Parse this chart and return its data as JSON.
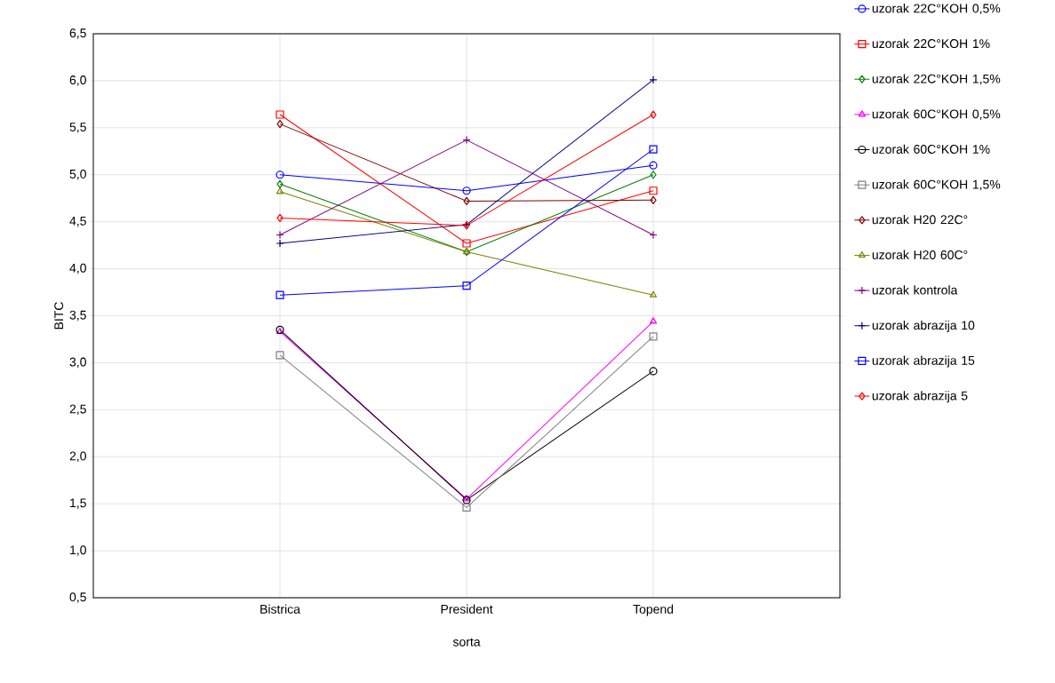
{
  "chart_data": {
    "type": "line",
    "xlabel": "sorta",
    "ylabel": "BITC",
    "categories": [
      "Bistrica",
      "President",
      "Topend"
    ],
    "ylim": [
      0.5,
      6.5
    ],
    "yticks": [
      {
        "value": 0.5,
        "label": "0,5"
      },
      {
        "value": 1.0,
        "label": "1,0"
      },
      {
        "value": 1.5,
        "label": "1,5"
      },
      {
        "value": 2.0,
        "label": "2,0"
      },
      {
        "value": 2.5,
        "label": "2,5"
      },
      {
        "value": 3.0,
        "label": "3,0"
      },
      {
        "value": 3.5,
        "label": "3,5"
      },
      {
        "value": 4.0,
        "label": "4,0"
      },
      {
        "value": 4.5,
        "label": "4,5"
      },
      {
        "value": 5.0,
        "label": "5,0"
      },
      {
        "value": 5.5,
        "label": "5,5"
      },
      {
        "value": 6.0,
        "label": "6,0"
      },
      {
        "value": 6.5,
        "label": "6,5"
      }
    ],
    "grid": true,
    "legend": "right",
    "series": [
      {
        "name": "uzorak 22C°KOH 0,5%",
        "color": "#0000ff",
        "marker": "circle",
        "values": [
          5.0,
          4.83,
          5.1
        ]
      },
      {
        "name": "uzorak 22C°KOH 1%",
        "color": "#ff0000",
        "marker": "square",
        "values": [
          5.64,
          4.27,
          4.83
        ]
      },
      {
        "name": "uzorak 22C°KOH 1,5%",
        "color": "#008000",
        "marker": "diamond",
        "values": [
          4.9,
          4.18,
          5.0
        ]
      },
      {
        "name": "uzorak 60C°KOH 0,5%",
        "color": "#ff00ff",
        "marker": "triangle",
        "values": [
          3.33,
          1.55,
          3.44
        ]
      },
      {
        "name": "uzorak 60C°KOH 1%",
        "color": "#000000",
        "marker": "circle",
        "values": [
          3.35,
          1.54,
          2.91
        ]
      },
      {
        "name": "uzorak 60C°KOH 1,5%",
        "color": "#808080",
        "marker": "square",
        "values": [
          3.08,
          1.46,
          3.28
        ]
      },
      {
        "name": "uzorak H20 22C°",
        "color": "#800000",
        "marker": "diamond",
        "values": [
          5.54,
          4.72,
          4.73
        ]
      },
      {
        "name": "uzorak H20 60C°",
        "color": "#808000",
        "marker": "triangle",
        "values": [
          4.82,
          4.18,
          3.72
        ]
      },
      {
        "name": "uzorak kontrola",
        "color": "#800080",
        "marker": "cross",
        "values": [
          4.36,
          5.37,
          4.36
        ]
      },
      {
        "name": "uzorak abrazija 10",
        "color": "#000080",
        "marker": "cross",
        "values": [
          4.27,
          4.47,
          6.01
        ]
      },
      {
        "name": "uzorak abrazija 15",
        "color": "#0000ff",
        "marker": "square",
        "values": [
          3.72,
          3.82,
          5.27
        ]
      },
      {
        "name": "uzorak abrazija 5",
        "color": "#ff0000",
        "marker": "diamond",
        "values": [
          4.54,
          4.46,
          5.64
        ]
      }
    ]
  }
}
